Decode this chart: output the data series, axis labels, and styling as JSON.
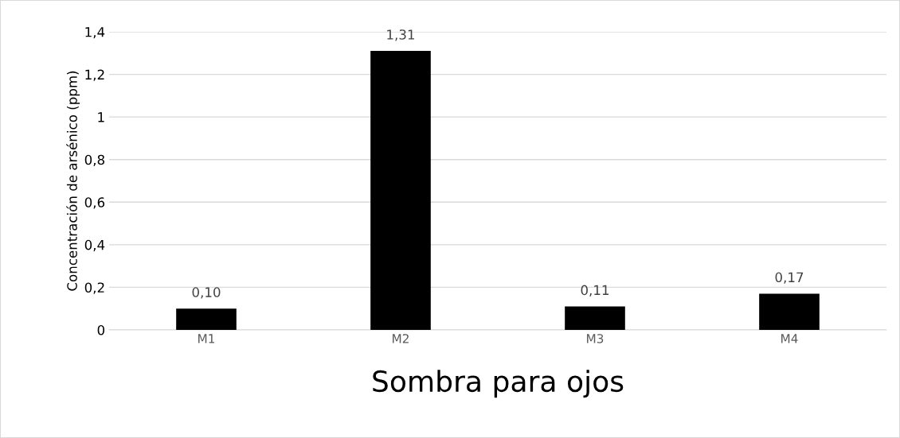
{
  "chart_data": {
    "type": "bar",
    "xlabel": "Sombra para ojos",
    "ylabel": "Concentración de arsénico (ppm)",
    "categories": [
      "M1",
      "M2",
      "M3",
      "M4"
    ],
    "values": [
      0.1,
      1.31,
      0.11,
      0.17
    ],
    "value_labels": [
      "0,10",
      "1,31",
      "0,11",
      "0,17"
    ],
    "color": "#000000",
    "ylim": [
      0,
      1.4
    ],
    "yticks": [
      0,
      {
        "value": 0.2,
        "label": "0,2"
      },
      {
        "value": 0.4,
        "label": "0,4"
      },
      {
        "value": 0.6,
        "label": "0,6"
      },
      {
        "value": 0.8,
        "label": "0,8"
      },
      1,
      {
        "value": 1.2,
        "label": "1,2"
      },
      {
        "value": 1.4,
        "label": "1,4"
      }
    ],
    "grid": "y"
  }
}
